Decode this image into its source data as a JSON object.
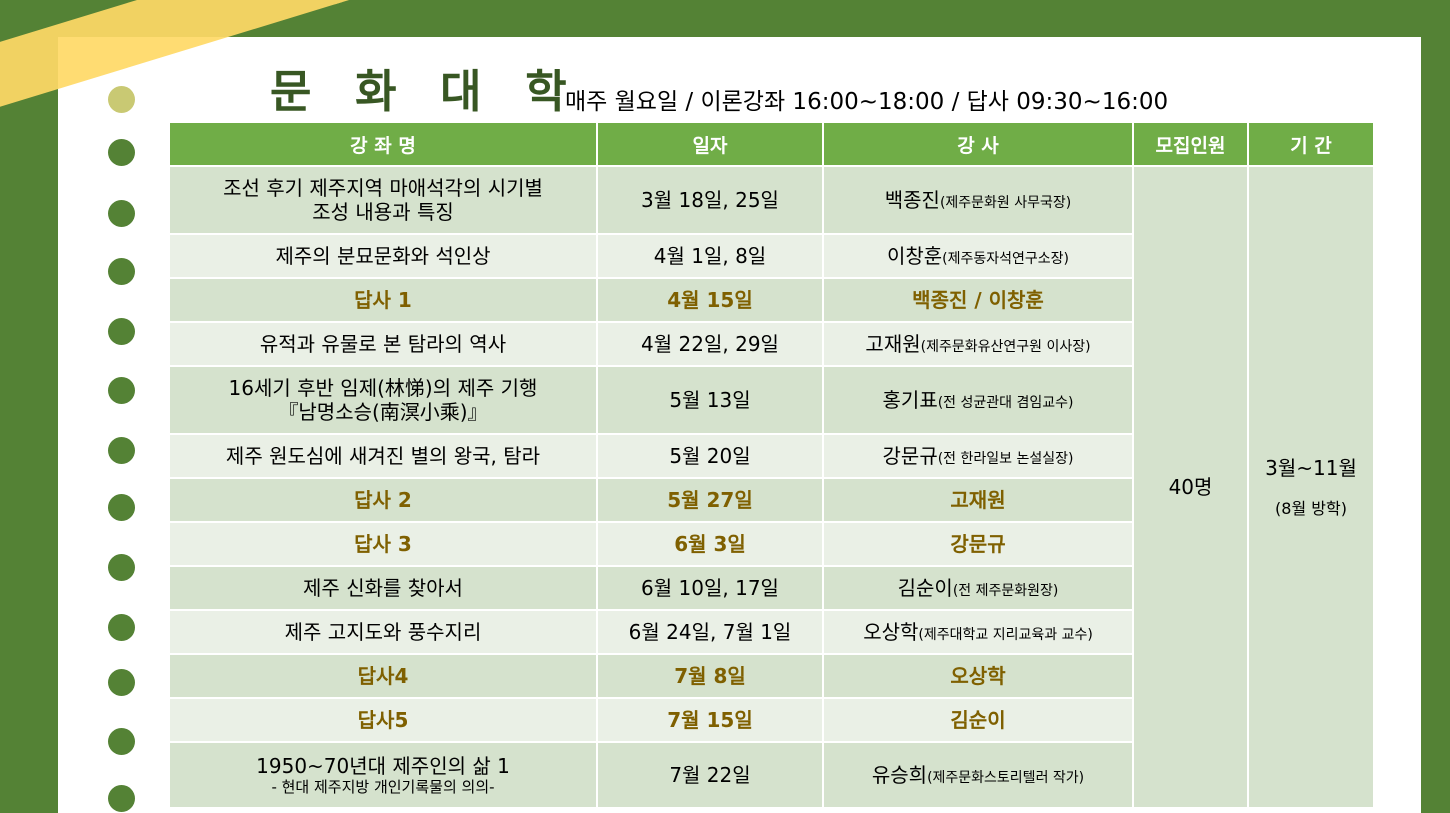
{
  "header": {
    "title": "문 화 대 학",
    "schedule": "매주 월요일 / 이론강좌 16:00~18:00 / 답사 09:30~16:00"
  },
  "table": {
    "headers": [
      "강 좌 명",
      "일자",
      "강 사",
      "모집인원",
      "기 간"
    ],
    "capacity": "40명",
    "period": "3월~11월",
    "period_note": "(8월 방학)",
    "rows": [
      {
        "course": "조선 후기 제주지역 마애석각의 시기별",
        "course2": "조성 내용과 특징",
        "date": "3월 18일, 25일",
        "lecturer": "백종진",
        "affiliation": "(제주문화원 사무국장)",
        "field": false
      },
      {
        "course": "제주의 분묘문화와 석인상",
        "course2": "",
        "date": "4월 1일, 8일",
        "lecturer": "이창훈",
        "affiliation": "(제주동자석연구소장)",
        "field": false
      },
      {
        "course": "답사 1",
        "course2": "",
        "date": "4월 15일",
        "lecturer": "백종진 / 이창훈",
        "affiliation": "",
        "field": true
      },
      {
        "course": "유적과 유물로 본 탐라의 역사",
        "course2": "",
        "date": "4월 22일, 29일",
        "lecturer": "고재원",
        "affiliation": "(제주문화유산연구원 이사장)",
        "field": false
      },
      {
        "course": "16세기 후반 임제(林悌)의 제주 기행",
        "course2": "『남명소승(南溟小乘)』",
        "date": "5월 13일",
        "lecturer": "홍기표",
        "affiliation": "(전 성균관대 겸임교수)",
        "field": false
      },
      {
        "course": "제주 원도심에 새겨진 별의 왕국, 탐라",
        "course2": "",
        "date": "5월 20일",
        "lecturer": "강문규",
        "affiliation": "(전 한라일보 논설실장)",
        "field": false
      },
      {
        "course": "답사 2",
        "course2": "",
        "date": "5월 27일",
        "lecturer": "고재원",
        "affiliation": "",
        "field": true
      },
      {
        "course": "답사 3",
        "course2": "",
        "date": "6월 3일",
        "lecturer": "강문규",
        "affiliation": "",
        "field": true
      },
      {
        "course": "제주 신화를 찾아서",
        "course2": "",
        "date": "6월 10일, 17일",
        "lecturer": "김순이",
        "affiliation": "(전 제주문화원장)",
        "field": false
      },
      {
        "course": "제주 고지도와 풍수지리",
        "course2": "",
        "date": "6월 24일, 7월 1일",
        "lecturer": "오상학",
        "affiliation": "(제주대학교 지리교육과 교수)",
        "field": false
      },
      {
        "course": "답사4",
        "course2": "",
        "date": "7월 8일",
        "lecturer": "오상학",
        "affiliation": "",
        "field": true
      },
      {
        "course": "답사5",
        "course2": "",
        "date": "7월 15일",
        "lecturer": "김순이",
        "affiliation": "",
        "field": true
      },
      {
        "course": "1950~70년대 제주인의 삶 1",
        "course2": "- 현대 제주지방 개인기록물의 의의-",
        "date": "7월 22일",
        "lecturer": "유승희",
        "affiliation": "(제주문화스토리텔러 작가)",
        "field": false
      }
    ]
  }
}
